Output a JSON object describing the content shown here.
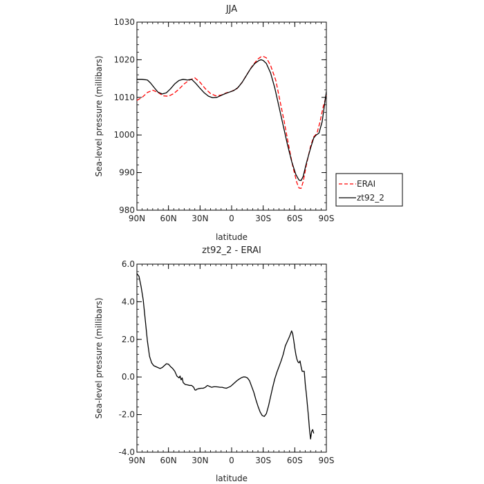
{
  "chart_data": [
    {
      "type": "line",
      "title": "JJA",
      "xlabel": "latitude",
      "ylabel": "Sea-level pressure (millibars)",
      "xlim": [
        90,
        -90
      ],
      "ylim": [
        980,
        1030
      ],
      "x_ticks": [
        90,
        60,
        30,
        0,
        -30,
        -60,
        -90
      ],
      "x_tick_labels": [
        "90N",
        "60N",
        "30N",
        "0",
        "30S",
        "60S",
        "90S"
      ],
      "y_ticks": [
        980,
        990,
        1000,
        1010,
        1020,
        1030
      ],
      "y_tick_labels": [
        "980",
        "990",
        "1000",
        "1010",
        "1020",
        "1030"
      ],
      "legend_position": "right-middle",
      "series": [
        {
          "name": "ERAI",
          "color": "#ff0000",
          "style": "dashed",
          "points": [
            [
              90,
              1009.2
            ],
            [
              85,
              1010.0
            ],
            [
              80,
              1011.3
            ],
            [
              75,
              1011.9
            ],
            [
              70,
              1011.3
            ],
            [
              65,
              1010.4
            ],
            [
              60,
              1010.3
            ],
            [
              55,
              1011.0
            ],
            [
              50,
              1012.2
            ],
            [
              45,
              1013.6
            ],
            [
              40,
              1014.6
            ],
            [
              35,
              1015.2
            ],
            [
              30,
              1014.0
            ],
            [
              25,
              1012.3
            ],
            [
              20,
              1011.0
            ],
            [
              15,
              1010.4
            ],
            [
              10,
              1010.6
            ],
            [
              5,
              1011.2
            ],
            [
              0,
              1011.6
            ],
            [
              -5,
              1012.3
            ],
            [
              -10,
              1014.0
            ],
            [
              -15,
              1016.3
            ],
            [
              -20,
              1018.5
            ],
            [
              -25,
              1020.2
            ],
            [
              -28,
              1020.8
            ],
            [
              -30,
              1020.9
            ],
            [
              -33,
              1020.5
            ],
            [
              -37,
              1018.5
            ],
            [
              -42,
              1014.5
            ],
            [
              -46,
              1009.0
            ],
            [
              -50,
              1003.5
            ],
            [
              -54,
              997.5
            ],
            [
              -58,
              991.8
            ],
            [
              -62,
              987.3
            ],
            [
              -64,
              985.9
            ],
            [
              -66,
              985.8
            ],
            [
              -68,
              987.6
            ],
            [
              -71,
              992.0
            ],
            [
              -75,
              997.0
            ],
            [
              -78,
              999.5
            ],
            [
              -81,
              1000.4
            ],
            [
              -84,
              1003.5
            ],
            [
              -87,
              1007.5
            ],
            [
              -90,
              1010.5
            ]
          ]
        },
        {
          "name": "zt92_2",
          "color": "#000000",
          "style": "solid",
          "points": [
            [
              90,
              1014.8
            ],
            [
              85,
              1014.8
            ],
            [
              80,
              1014.6
            ],
            [
              77,
              1013.8
            ],
            [
              73,
              1012.4
            ],
            [
              70,
              1011.4
            ],
            [
              66,
              1010.9
            ],
            [
              62,
              1011.2
            ],
            [
              58,
              1012.3
            ],
            [
              54,
              1013.6
            ],
            [
              50,
              1014.5
            ],
            [
              46,
              1014.8
            ],
            [
              42,
              1014.6
            ],
            [
              38,
              1014.8
            ],
            [
              34,
              1013.7
            ],
            [
              30,
              1012.4
            ],
            [
              26,
              1011.2
            ],
            [
              22,
              1010.3
            ],
            [
              18,
              1009.9
            ],
            [
              14,
              1010.0
            ],
            [
              10,
              1010.5
            ],
            [
              6,
              1011.0
            ],
            [
              2,
              1011.4
            ],
            [
              -2,
              1011.8
            ],
            [
              -6,
              1012.6
            ],
            [
              -10,
              1014.0
            ],
            [
              -14,
              1015.8
            ],
            [
              -18,
              1017.6
            ],
            [
              -22,
              1019.0
            ],
            [
              -26,
              1019.8
            ],
            [
              -28,
              1020.0
            ],
            [
              -30,
              1019.8
            ],
            [
              -33,
              1019.0
            ],
            [
              -37,
              1016.5
            ],
            [
              -41,
              1012.5
            ],
            [
              -45,
              1007.5
            ],
            [
              -49,
              1002.5
            ],
            [
              -53,
              997.5
            ],
            [
              -57,
              993.0
            ],
            [
              -61,
              989.5
            ],
            [
              -64,
              988.0
            ],
            [
              -66,
              987.9
            ],
            [
              -68,
              989.0
            ],
            [
              -71,
              992.5
            ],
            [
              -75,
              996.5
            ],
            [
              -78,
              999.2
            ],
            [
              -80,
              999.9
            ],
            [
              -83,
              1000.5
            ],
            [
              -86,
              1003.5
            ],
            [
              -90,
              1011.5
            ]
          ]
        }
      ]
    },
    {
      "type": "line",
      "title": "zt92_2 - ERAI",
      "xlabel": "latitude",
      "ylabel": "Sea-level pressure (millibars)",
      "xlim": [
        90,
        -90
      ],
      "ylim": [
        -4,
        6
      ],
      "x_ticks": [
        90,
        60,
        30,
        0,
        -30,
        -60,
        -90
      ],
      "x_tick_labels": [
        "90N",
        "60N",
        "30N",
        "0",
        "30S",
        "60S",
        "90S"
      ],
      "y_ticks": [
        -4,
        -2,
        0,
        2,
        4,
        6
      ],
      "y_tick_labels": [
        "-4.0",
        "-2.0",
        "0.0",
        "2.0",
        "4.0",
        "6.0"
      ],
      "series": [
        {
          "name": "zt92_2 - ERAI",
          "color": "#000000",
          "style": "solid",
          "points": [
            [
              90,
              5.5
            ],
            [
              88,
              5.35
            ],
            [
              86,
              4.8
            ],
            [
              84,
              4.1
            ],
            [
              82,
              3.0
            ],
            [
              80,
              1.9
            ],
            [
              78,
              1.1
            ],
            [
              76,
              0.75
            ],
            [
              74,
              0.6
            ],
            [
              72,
              0.55
            ],
            [
              70,
              0.5
            ],
            [
              68,
              0.45
            ],
            [
              66,
              0.5
            ],
            [
              64,
              0.6
            ],
            [
              62,
              0.7
            ],
            [
              60,
              0.68
            ],
            [
              58,
              0.55
            ],
            [
              56,
              0.45
            ],
            [
              54,
              0.3
            ],
            [
              52,
              0.05
            ],
            [
              50,
              -0.05
            ],
            [
              49,
              0.05
            ],
            [
              48,
              -0.15
            ],
            [
              47,
              -0.05
            ],
            [
              46,
              -0.3
            ],
            [
              44,
              -0.4
            ],
            [
              42,
              -0.42
            ],
            [
              40,
              -0.45
            ],
            [
              38,
              -0.45
            ],
            [
              36,
              -0.55
            ],
            [
              35,
              -0.68
            ],
            [
              34,
              -0.7
            ],
            [
              33,
              -0.65
            ],
            [
              31,
              -0.62
            ],
            [
              29,
              -0.6
            ],
            [
              27,
              -0.6
            ],
            [
              25,
              -0.55
            ],
            [
              23,
              -0.45
            ],
            [
              21,
              -0.5
            ],
            [
              19,
              -0.55
            ],
            [
              17,
              -0.52
            ],
            [
              15,
              -0.52
            ],
            [
              13,
              -0.53
            ],
            [
              11,
              -0.55
            ],
            [
              9,
              -0.55
            ],
            [
              7,
              -0.58
            ],
            [
              5,
              -0.6
            ],
            [
              3,
              -0.55
            ],
            [
              1,
              -0.5
            ],
            [
              -1,
              -0.4
            ],
            [
              -3,
              -0.3
            ],
            [
              -5,
              -0.2
            ],
            [
              -7,
              -0.12
            ],
            [
              -9,
              -0.05
            ],
            [
              -11,
              0.0
            ],
            [
              -13,
              0.0
            ],
            [
              -15,
              -0.05
            ],
            [
              -17,
              -0.2
            ],
            [
              -19,
              -0.5
            ],
            [
              -21,
              -0.8
            ],
            [
              -23,
              -1.2
            ],
            [
              -25,
              -1.55
            ],
            [
              -27,
              -1.85
            ],
            [
              -29,
              -2.05
            ],
            [
              -31,
              -2.1
            ],
            [
              -33,
              -1.95
            ],
            [
              -35,
              -1.55
            ],
            [
              -37,
              -1.05
            ],
            [
              -39,
              -0.55
            ],
            [
              -41,
              -0.1
            ],
            [
              -43,
              0.25
            ],
            [
              -45,
              0.55
            ],
            [
              -47,
              0.85
            ],
            [
              -49,
              1.2
            ],
            [
              -51,
              1.65
            ],
            [
              -53,
              1.9
            ],
            [
              -55,
              2.15
            ],
            [
              -57,
              2.45
            ],
            [
              -58,
              2.3
            ],
            [
              -59,
              1.95
            ],
            [
              -60,
              1.55
            ],
            [
              -61,
              1.2
            ],
            [
              -62,
              0.95
            ],
            [
              -63,
              0.8
            ],
            [
              -64,
              0.75
            ],
            [
              -65,
              0.85
            ],
            [
              -66,
              0.55
            ],
            [
              -67,
              0.3
            ],
            [
              -68,
              0.3
            ],
            [
              -69,
              0.3
            ],
            [
              -70,
              -0.4
            ],
            [
              -71,
              -0.9
            ],
            [
              -72,
              -1.5
            ],
            [
              -73,
              -2.1
            ],
            [
              -74,
              -2.8
            ],
            [
              -75,
              -3.3
            ],
            [
              -76,
              -2.9
            ],
            [
              -77,
              -2.8
            ],
            [
              -78,
              -3.0
            ]
          ]
        }
      ]
    }
  ]
}
